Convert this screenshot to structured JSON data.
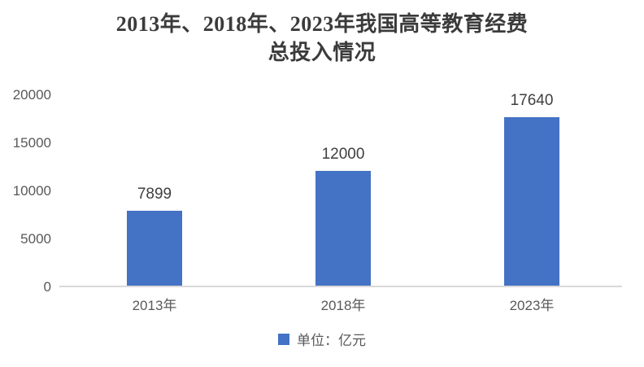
{
  "chart_data": {
    "type": "bar",
    "title": "2013年、2018年、2023年我国高等教育经费总投入情况",
    "title_lines": [
      "2013年、2018年、2023年我国高等教育经费",
      "总投入情况"
    ],
    "categories": [
      "2013年",
      "2018年",
      "2023年"
    ],
    "values": [
      7899,
      12000,
      17640
    ],
    "xlabel": "",
    "ylabel": "",
    "yticks": [
      0,
      5000,
      10000,
      15000,
      20000
    ],
    "ylim": [
      0,
      20000
    ],
    "grid": false,
    "legend": {
      "label": "单位：亿元",
      "position": "bottom"
    },
    "colors": {
      "bar": "#4472C4",
      "axis_text": "#595959",
      "data_label": "#3f3f3f",
      "title_text": "#3b3b3b",
      "axis_line": "#d9d9d9"
    }
  }
}
